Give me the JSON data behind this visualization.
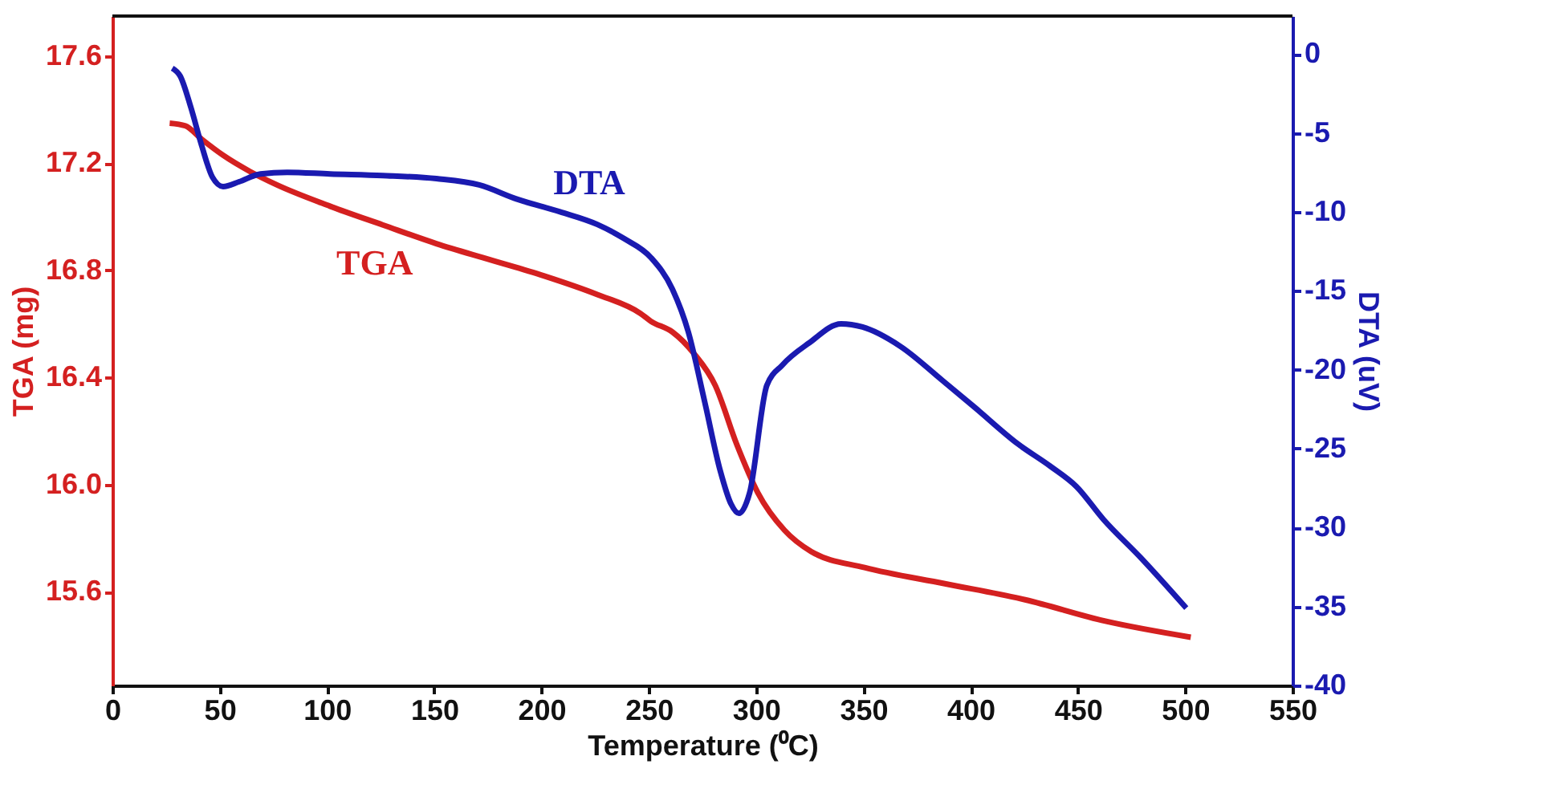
{
  "chart_data": {
    "type": "line",
    "xlabel": "Temperature (⁰C)",
    "ylabel": "TGA (mg)",
    "y2label": "DTA (uV)",
    "xlim": [
      0,
      550
    ],
    "xticks": [
      0,
      50,
      100,
      150,
      200,
      250,
      300,
      350,
      400,
      450,
      500,
      550
    ],
    "ylim": [
      15.25,
      17.75
    ],
    "yticks": [
      15.6,
      {
        "value": 16,
        "label": "16.0"
      },
      16.4,
      16.8,
      17.2,
      17.6
    ],
    "y2lim": [
      -40,
      2.4
    ],
    "y2ticks": [
      -40,
      -35,
      -30,
      -25,
      -20,
      -15,
      -10,
      -5,
      0
    ],
    "grid": false,
    "marker": "none",
    "line_style": "solid",
    "series": [
      {
        "name": "TGA",
        "color": "#d42020",
        "x": [
          26.7,
          34,
          41.6,
          51.6,
          64,
          76.5,
          101.4,
          126,
          151,
          176,
          201,
          226,
          246,
          251,
          261,
          271,
          281,
          291,
          300.8,
          313.2,
          325.7,
          350.6,
          388,
          425.4,
          462.8,
          502.6
        ],
        "values": [
          17.35,
          17.34,
          17.29,
          17.23,
          17.17,
          17.12,
          17.04,
          16.97,
          16.9,
          16.84,
          16.78,
          16.71,
          16.64,
          16.61,
          16.57,
          16.49,
          16.37,
          16.15,
          15.97,
          15.83,
          15.75,
          15.69,
          15.63,
          15.57,
          15.49,
          15.43
        ]
      },
      {
        "name": "DTA",
        "color": "#1a1ab0",
        "axis": "y2",
        "x": [
          27.9,
          31.6,
          36.6,
          41.6,
          46.6,
          51.6,
          59,
          69,
          81.5,
          101.4,
          126,
          151,
          171,
          188.6,
          208.6,
          226,
          238.5,
          251,
          261,
          268.4,
          276,
          283.3,
          288.3,
          292,
          297,
          305,
          312.3,
          324.8,
          339.6,
          349.6,
          367,
          387,
          402,
          422,
          437,
          449.3,
          462,
          479.2,
          500.5
        ],
        "values": [
          -0.9,
          -1.4,
          -3.4,
          -5.8,
          -7.8,
          -8.4,
          -8.1,
          -7.6,
          -7.5,
          -7.6,
          -7.7,
          -7.9,
          -8.3,
          -9.2,
          -10.0,
          -10.8,
          -11.7,
          -12.9,
          -14.9,
          -17.6,
          -22.0,
          -26.4,
          -28.5,
          -29.1,
          -27.8,
          -21.0,
          -19.7,
          -18.3,
          -17.1,
          -17.3,
          -18.5,
          -20.7,
          -22.4,
          -24.7,
          -26.1,
          -27.4,
          -29.5,
          -31.9,
          -35.1
        ]
      }
    ]
  }
}
